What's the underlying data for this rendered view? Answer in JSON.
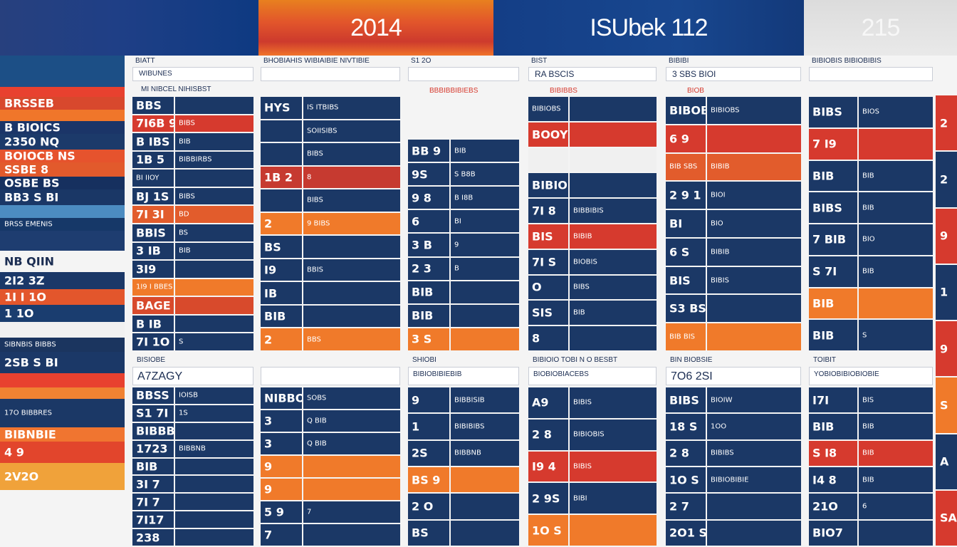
{
  "headers": [
    "2014",
    "ISUbek 112",
    "215"
  ],
  "left": [
    {
      "text": "",
      "c": "#1c4f86"
    },
    {
      "text": "",
      "c": "#e8412f"
    },
    {
      "text": "BRSSEB",
      "c": "#d8482d"
    },
    {
      "text": "",
      "c": "#f0762a"
    },
    {
      "text": "B BIOICS",
      "c": "#1b3568"
    },
    {
      "text": "2350 NQ",
      "c": "#1c3a6a"
    },
    {
      "text": "BOIOCB NS",
      "c": "#e6532d"
    },
    {
      "text": "SSBE 8",
      "c": "#e25a2c"
    },
    {
      "text": "OSBE BS",
      "c": "#16305f"
    },
    {
      "text": "BB3 S BI",
      "c": "#1a3766"
    },
    {
      "text": "",
      "c": "#4c8cc1"
    },
    {
      "text": "BRSS EMENIS",
      "c": "#163868"
    },
    {
      "text": "",
      "c": "#1e3d70"
    },
    {
      "text": "NB QIIN",
      "c": "#f4f4f4"
    },
    {
      "text": "2I2 3Z",
      "c": "#1b3868"
    },
    {
      "text": "1I I 1O",
      "c": "#e3562c"
    },
    {
      "text": "1 1O",
      "c": "#1a3d6f"
    },
    {
      "text": "",
      "c": "#f1f1f1"
    },
    {
      "text": "SIBNBIS BIBBS",
      "c": "#1b355f"
    },
    {
      "text": "2SB S BI",
      "c": "#1b3867"
    },
    {
      "text": "",
      "c": "#e8412f"
    },
    {
      "text": "",
      "c": "#f08232"
    },
    {
      "text": "17O BIBBRES",
      "c": "#1b3866"
    },
    {
      "text": "BIBNBIE",
      "c": "#f07530"
    },
    {
      "text": "4 9",
      "c": "#e2452c"
    },
    {
      "text": "2V2O",
      "c": "#f0a23a"
    }
  ],
  "col_a": {
    "head_label": "BIATT",
    "sub1": "WIBUNES",
    "sub2": "MI NIBCEL NIHISBST",
    "rows": [
      [
        "BBS",
        "",
        "#1b3866"
      ],
      [
        "7I6B 9",
        "BIBS",
        "#d63a2e"
      ],
      [
        "B IBS",
        "BIB",
        "#1b3866"
      ],
      [
        "1B 5",
        "BIBBIRBS",
        "#1b3866"
      ],
      [
        "BI IIOY",
        "",
        "#1b3866"
      ],
      [
        "BJ 1S",
        "BIBS",
        "#1b3866"
      ],
      [
        "7I 3I",
        "BD",
        "#e25c2c"
      ],
      [
        "BBIS",
        "BS",
        "#1b3866"
      ],
      [
        "3 IB",
        "BIB",
        "#1b3866"
      ],
      [
        "3I9",
        "",
        "#1b3866"
      ],
      [
        "1I9 I BBES",
        "",
        "#f07a2a"
      ],
      [
        "BAGE",
        "",
        "#d84a2c"
      ],
      [
        "B IB",
        "",
        "#1b3866"
      ],
      [
        "7I 1O",
        "S",
        "#1b3866"
      ]
    ],
    "head2": "BISIOBE",
    "title2": "A7ZAGY",
    "rows2": [
      [
        "BBSS",
        "IOISB",
        "#1b3866"
      ],
      [
        "S1 7I",
        "1S",
        "#1b3866"
      ],
      [
        "BIBBB",
        "",
        "#1b3866"
      ],
      [
        "1723",
        "BIBBNB",
        "#1b3866"
      ],
      [
        "BIB",
        "",
        "#1b3866"
      ],
      [
        "3I 7",
        "",
        "#1b3866"
      ],
      [
        "7I 7",
        "",
        "#1b3866"
      ],
      [
        "7I17",
        "",
        "#1b3866"
      ],
      [
        "238",
        "",
        "#1b3866"
      ]
    ]
  },
  "col_b": {
    "head_label": "BHOBIAHIS WIBIAIBIE NIVTIBIE",
    "rows": [
      [
        "HYS",
        "IS ITBIBS",
        "#1b3866"
      ],
      [
        "",
        "SOIISIBS",
        "#1b3866"
      ],
      [
        "",
        "BIBS",
        "#1b3866"
      ],
      [
        "1B 2",
        "8",
        "#c63a30"
      ],
      [
        "",
        "BIBS",
        "#1b3866"
      ],
      [
        "2",
        "9 BIBS",
        "#f07a2a"
      ],
      [
        "BS",
        "",
        "#1b3866"
      ],
      [
        "I9",
        "BBIS",
        "#1b3866"
      ],
      [
        "IB",
        "",
        "#1b3866"
      ],
      [
        "BIB",
        "",
        "#1b3866"
      ],
      [
        "2",
        "BBS",
        "#f07a2a"
      ]
    ],
    "rows2": [
      [
        "NIBBO",
        "SOBS",
        "#1b3866"
      ],
      [
        "3",
        "Q BIB",
        "#1b3866"
      ],
      [
        "3",
        "Q BIB",
        "#1b3866"
      ],
      [
        "9",
        "",
        "#f07a2a"
      ],
      [
        "9",
        "",
        "#f07a2a"
      ],
      [
        "5 9",
        "7",
        "#1b3866"
      ],
      [
        "7",
        "",
        "#1b3866"
      ]
    ]
  },
  "col_c": {
    "head_label": "S1 2O",
    "note": "BBBIBBIBIEBS",
    "rows": [
      [
        "BB 9",
        "BIB",
        "#1b3866"
      ],
      [
        "9S",
        "S B8B",
        "#1b3866"
      ],
      [
        "9 8",
        "B I8B",
        "#1b3866"
      ],
      [
        "6",
        "BI",
        "#1b3866"
      ],
      [
        "3 B",
        "9",
        "#1b3866"
      ],
      [
        "2 3",
        "B",
        "#1b3866"
      ],
      [
        "BIB",
        "",
        "#1b3866"
      ],
      [
        "BIB",
        "",
        "#1b3866"
      ],
      [
        "3 S",
        "",
        "#f07a2a"
      ]
    ],
    "head2": "SHIOBI",
    "title2": "BIBIOBIBIEBIB",
    "rows2": [
      [
        "9",
        "BIBBISIB",
        "#1b3866"
      ],
      [
        "1",
        "BIBIBIBS",
        "#1b3866"
      ],
      [
        "2S",
        "BIBBNB",
        "#1b3866"
      ],
      [
        "BS 9",
        "",
        "#f07a2a"
      ],
      [
        "2 O",
        "",
        "#1b3866"
      ],
      [
        "BS",
        "",
        "#1b3866"
      ]
    ]
  },
  "col_d": {
    "head_label": "BIST",
    "title": "RA BSCIS",
    "note": "BIBIBBS",
    "rows": [
      [
        "BIBIOBS",
        "",
        "#1b3866"
      ],
      [
        "BOOY",
        "",
        "#d63a2e"
      ],
      [
        "",
        "",
        "#f0f0f0"
      ],
      [
        "BIBIOB",
        "",
        "#1b3866"
      ],
      [
        "7I 8",
        "BIBBIBIS",
        "#1b3866"
      ],
      [
        "BIS",
        "BIBIB",
        "#d63a2e"
      ],
      [
        "7I S",
        "BIOBIS",
        "#1b3866"
      ],
      [
        "O",
        "BIBS",
        "#1b3866"
      ],
      [
        "SIS",
        "BIB",
        "#1b3866"
      ],
      [
        "8",
        "",
        "#1b3866"
      ]
    ],
    "head2": "BIBIOIO TOBI N O BESBT",
    "title2": "BIOBIOBIACEBS",
    "rows2": [
      [
        "A9",
        "BIBIS",
        "#1b3866"
      ],
      [
        "2 8",
        "BIBIOBIS",
        "#1b3866"
      ],
      [
        "I9 4",
        "BIBIS",
        "#d63a2e"
      ],
      [
        "2 9S",
        "BIBI",
        "#1b3866"
      ],
      [
        "1O S",
        "",
        "#f07a2a"
      ]
    ]
  },
  "col_e": {
    "head_label": "BIBIBI",
    "title": "3 SBS BIOI",
    "note": "BIOB",
    "rows": [
      [
        "BIBOBS",
        "BIBIOBS",
        "#1b3866"
      ],
      [
        "6 9",
        "",
        "#d63a2e"
      ],
      [
        "BIB SBS",
        "BIBIB",
        "#e25c2c"
      ],
      [
        "2 9 1",
        "BIOI",
        "#1b3866"
      ],
      [
        "BI",
        "BIO",
        "#1b3866"
      ],
      [
        "6 S",
        "BIBIB",
        "#1b3866"
      ],
      [
        "BIS",
        "BIBIS",
        "#1b3866"
      ],
      [
        "S3 BS",
        "",
        "#1b3866"
      ],
      [
        "BIB BIS",
        "",
        "#f07a2a"
      ]
    ],
    "head2": "BIN BIOBSIE",
    "title2": "7O6 2SI",
    "rows2": [
      [
        "BIBS",
        "BIOIW",
        "#1b3866"
      ],
      [
        "18 S",
        "1OO",
        "#1b3866"
      ],
      [
        "2 8",
        "BIBIBS",
        "#1b3866"
      ],
      [
        "1O S",
        "BIBIOBIBIE",
        "#1b3866"
      ],
      [
        "2 7",
        "",
        "#1b3866"
      ],
      [
        "2O1 S",
        "",
        "#1b3866"
      ]
    ]
  },
  "col_f": {
    "head_label": "BIBIOBIS BIBIOBIBIS",
    "rows": [
      [
        "BIBS",
        "BIOS",
        "#1b3866"
      ],
      [
        "7 I9",
        "",
        "#d63a2e"
      ],
      [
        "BIB",
        "BIB",
        "#1b3866"
      ],
      [
        "BIBS",
        "BIB",
        "#1b3866"
      ],
      [
        "7 BIB",
        "BIO",
        "#1b3866"
      ],
      [
        "S 7I",
        "BIB",
        "#1b3866"
      ],
      [
        "BIB",
        "",
        "#f07a2a"
      ],
      [
        "BIB",
        "S",
        "#1b3866"
      ]
    ],
    "head2": "TOIBIT",
    "title2": "YOBIOBIBIOBIOBIE",
    "rows2": [
      [
        "I7I",
        "BIS",
        "#1b3866"
      ],
      [
        "BIB",
        "BIB",
        "#1b3866"
      ],
      [
        "S I8",
        "BIB",
        "#d63a2e"
      ],
      [
        "I4 8",
        "BIB",
        "#1b3866"
      ],
      [
        "21O",
        "6",
        "#1b3866"
      ],
      [
        "BIO7",
        "",
        "#1b3866"
      ]
    ]
  },
  "right_edge": [
    "2",
    "2",
    "9",
    "1",
    "9",
    "S",
    "A",
    "SA"
  ]
}
